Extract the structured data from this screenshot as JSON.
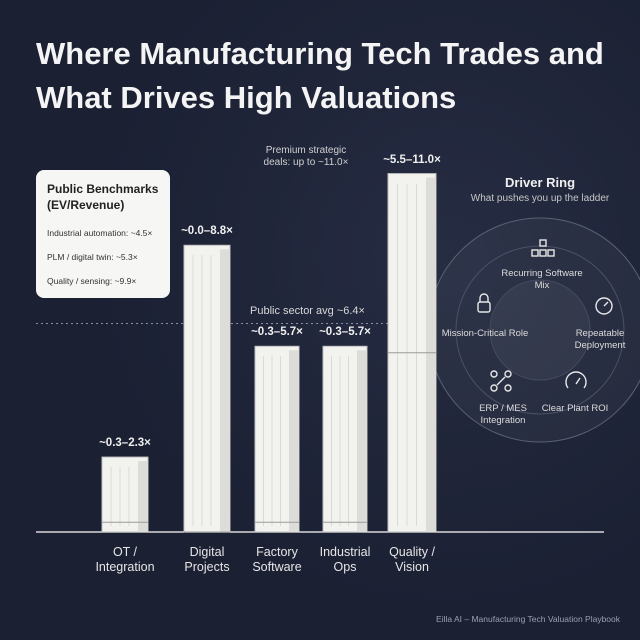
{
  "chart_data": {
    "type": "range-building",
    "title": "Where Manufacturing Tech Trades and What Drives High Valuations",
    "categories": [
      "OT / Integration",
      "Digital Projects",
      "Factory Software",
      "Industrial Ops",
      "Quality / Vision"
    ],
    "low": [
      0.3,
      0.0,
      0.3,
      0.3,
      5.5
    ],
    "high": [
      2.3,
      8.8,
      5.7,
      5.7,
      11.0
    ],
    "value_labels": [
      "~0.3–2.3×",
      "~0.0–8.8×",
      "~0.3–5.7×",
      "~0.3–5.7×",
      "~5.5–11.0×"
    ],
    "color": "#f2f2ef",
    "ylim": [
      0,
      12
    ],
    "reference": {
      "value": 6.4,
      "label": "Public sector avg ~6.4×"
    },
    "annotation": "Premium strategic deals: up to ~11.0×",
    "benchmarks": {
      "title": "Public Benchmarks (EV/Revenue)",
      "items": [
        "Industrial automation: ~4.5×",
        "PLM / digital twin: ~5.3×",
        "Quality / sensing: ~9.9×"
      ]
    },
    "driver_ring": {
      "title": "Driver Ring",
      "subtitle": "What pushes you up the ladder",
      "items": [
        "Recurring Software Mix",
        "Mission-Critical Role",
        "Repeatable Deployment",
        "ERP / MES Integration",
        "Clear Plant ROI"
      ]
    },
    "footer": "Eilla AI – Manufacturing Tech Valuation Playbook"
  }
}
